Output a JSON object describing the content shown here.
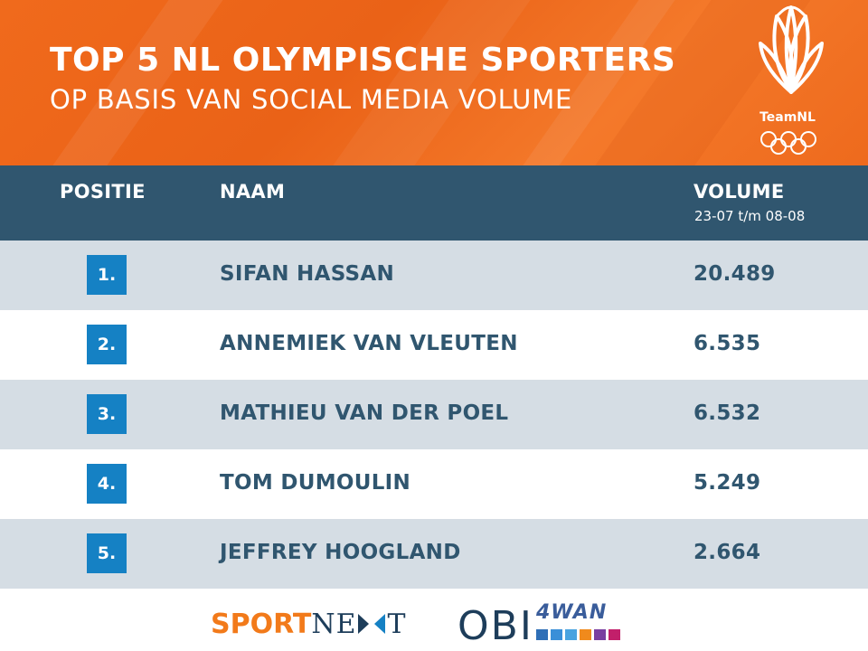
{
  "header": {
    "title": "TOP 5 NL OLYMPISCHE SPORTERS",
    "subtitle": "OP BASIS VAN SOCIAL MEDIA VOLUME",
    "logo_text": "TeamNL",
    "colors": {
      "orange": "#f06a1c"
    }
  },
  "table": {
    "columns": {
      "position": "POSITIE",
      "name": "NAAM",
      "volume": "VOLUME",
      "volume_period": "23-07 t/m 08-08"
    },
    "rows": [
      {
        "position": "1.",
        "name": "SIFAN HASSAN",
        "volume": "20.489"
      },
      {
        "position": "2.",
        "name": "ANNEMIEK VAN VLEUTEN",
        "volume": "6.535"
      },
      {
        "position": "3.",
        "name": "MATHIEU VAN DER POEL",
        "volume": "6.532"
      },
      {
        "position": "4.",
        "name": "TOM DUMOULIN",
        "volume": "5.249"
      },
      {
        "position": "5.",
        "name": "JEFFREY HOOGLAND",
        "volume": "2.664"
      }
    ],
    "colors": {
      "header_bg": "#30566f",
      "badge": "#1581c4",
      "row_alt": "#d5dde4",
      "text": "#30566f"
    }
  },
  "footer": {
    "sportnext_part1": "SPORT",
    "sportnext_part2": "NE",
    "sportnext_part3": "T",
    "obi_text": "OBI",
    "fourwan_text": "4WAN"
  }
}
